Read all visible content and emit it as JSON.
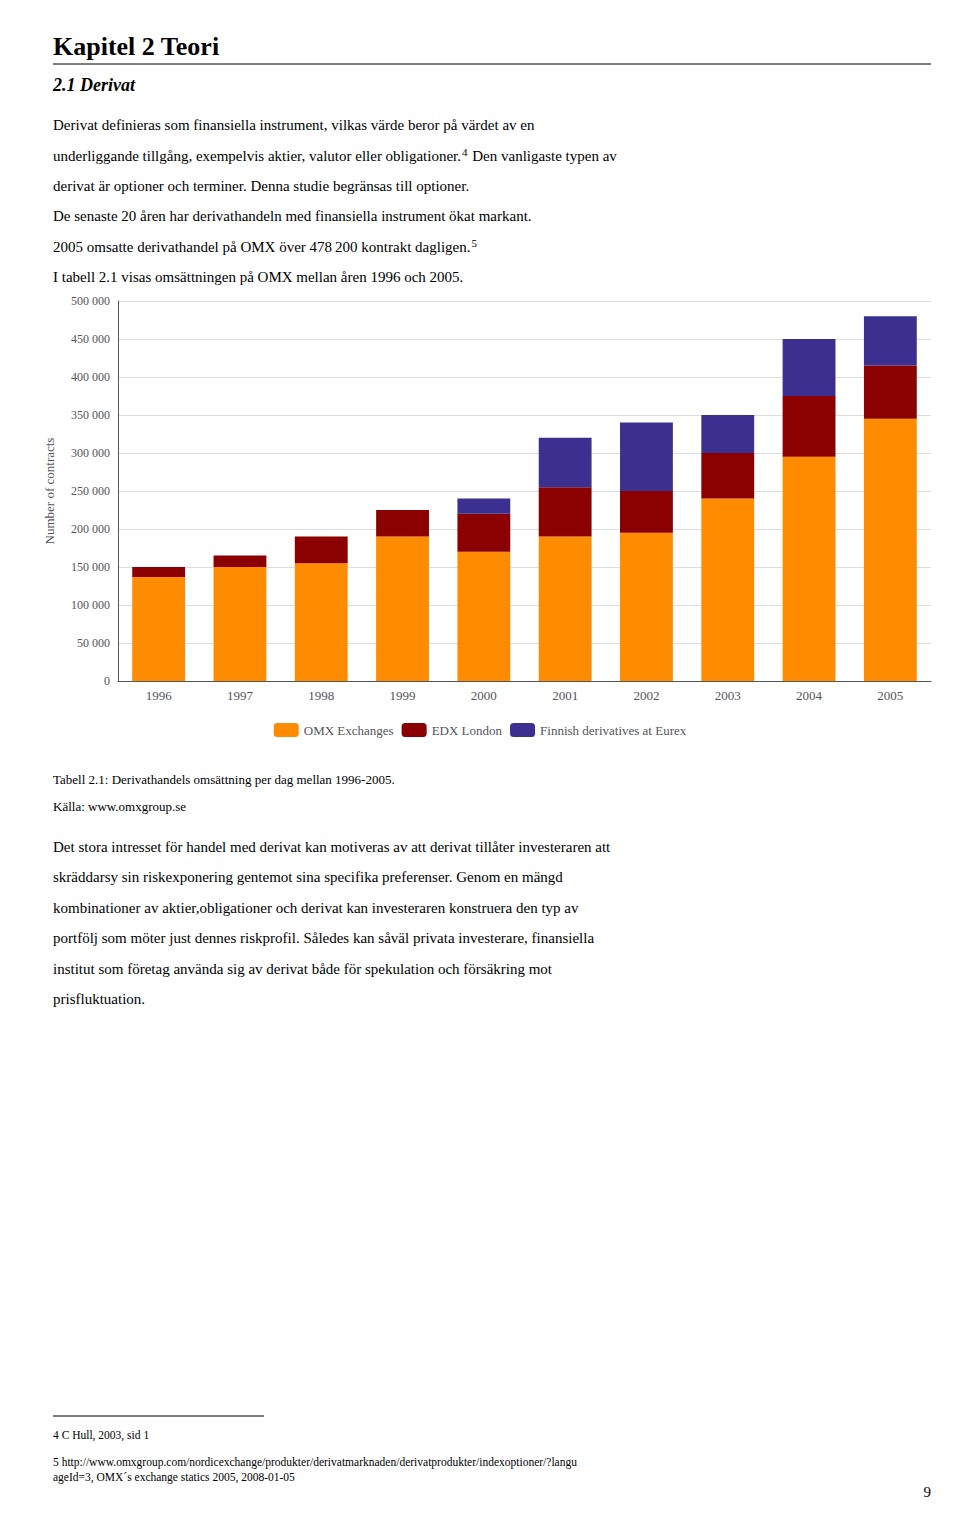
{
  "chart_data": {
    "type": "bar",
    "stacked": true,
    "title": "Kapitel 2 Teori",
    "subtitle": "2.1 Derivat",
    "categories": [
      "1996",
      "1997",
      "1998",
      "1999",
      "2000",
      "2001",
      "2002",
      "2003",
      "2004",
      "2005"
    ],
    "series": [
      {
        "name": "OMX Exchanges",
        "color": "#FF8C00",
        "values": [
          137000,
          150000,
          155000,
          190000,
          170000,
          190000,
          195000,
          240000,
          295000,
          345000
        ]
      },
      {
        "name": "EDX London",
        "color": "#8B0000",
        "values": [
          13000,
          15000,
          35000,
          35000,
          50000,
          65000,
          55000,
          60000,
          80000,
          70000
        ]
      },
      {
        "name": "Finnish derivatives at Eurex",
        "color": "#3B3090",
        "values": [
          0,
          0,
          0,
          0,
          20000,
          65000,
          90000,
          50000,
          75000,
          65000
        ]
      }
    ],
    "ylabel": "Number of contracts",
    "ylim": [
      0,
      500000
    ],
    "yticks": [
      0,
      {
        "value": 50000,
        "label": "50 000"
      },
      {
        "value": 100000,
        "label": "100 000"
      },
      {
        "value": 150000,
        "label": "150 000"
      },
      {
        "value": 200000,
        "label": "200 000"
      },
      {
        "value": 250000,
        "label": "250 000"
      },
      {
        "value": 300000,
        "label": "300 000"
      },
      {
        "value": 350000,
        "label": "350 000"
      },
      {
        "value": 400000,
        "label": "400 000"
      },
      {
        "value": 450000,
        "label": "450 000"
      },
      {
        "value": 500000,
        "label": "500 000"
      }
    ],
    "grid": true,
    "legend": "bottom",
    "annotations": [
      "Derivat definieras som finansiella instrument, vilkas värde beror på värdet av en",
      [
        "underliggande tillgång, exempelvis aktier, valutor eller obligationer.",
        "4",
        " Den vanligaste typen av"
      ],
      "derivat är optioner och terminer. Denna studie begränsas till optioner.",
      "De senaste 20 åren har derivathandeln med finansiella instrument ökat markant.",
      [
        "2005 omsatte derivathandel på OMX över 478 200 kontrakt dagligen.",
        "5"
      ],
      "I tabell 2.1 visas omsättningen på OMX mellan åren 1996 och 2005.",
      "Tabell 2.1: Derivathandels omsättning per dag mellan 1996-2005.",
      "Källa: www.omxgroup.se",
      "Det stora intresset för handel med derivat kan motiveras av att derivat tillåter investeraren att",
      "skräddarsy sin riskexponering gentemot sina specifika preferenser. Genom en mängd",
      "kombinationer av aktier,obligationer och derivat kan investeraren konstruera den typ av",
      "portfölj som möter just dennes riskprofil. Således kan såväl privata investerare, finansiella",
      "institut som företag använda sig av derivat både för spekulation och försäkring mot",
      "prisfluktuation.",
      "4 C Hull, 2003, sid 1",
      "5 http://www.omxgroup.com/nordicexchange/produkter/derivatmarknaden/derivatprodukter/indexoptioner/?langu\nageId=3, OMX´s exchange statics 2005, 2008-01-05",
      "9"
    ]
  }
}
